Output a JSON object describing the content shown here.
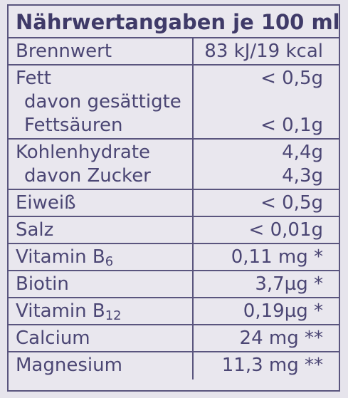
{
  "title": "Nährwertangaben je 100 ml",
  "rows": [
    {
      "lines": [
        {
          "label": "Brennwert",
          "value": "83 kJ/19 kcal"
        }
      ]
    },
    {
      "lines": [
        {
          "label": "Fett",
          "value": "< 0,5g"
        },
        {
          "label": "davon gesättigte"
        },
        {
          "label": "Fettsäuren",
          "value": "< 0,1g"
        }
      ]
    },
    {
      "lines": [
        {
          "label": "Kohlenhydrate",
          "value": "4,4g"
        },
        {
          "label": "davon Zucker",
          "value": "4,3g"
        }
      ]
    },
    {
      "lines": [
        {
          "label": "Eiweiß",
          "value": "< 0,5g"
        }
      ]
    },
    {
      "lines": [
        {
          "label": "Salz",
          "value": "< 0,01g"
        }
      ]
    },
    {
      "lines": [
        {
          "label": "Vitamin B",
          "sub": "6",
          "value": "0,11 mg *"
        }
      ]
    },
    {
      "lines": [
        {
          "label": "Biotin",
          "value": "3,7µg *"
        }
      ]
    },
    {
      "lines": [
        {
          "label": "Vitamin B",
          "sub": "12",
          "value": "0,19µg *"
        }
      ]
    },
    {
      "lines": [
        {
          "label": "Calcium",
          "value": "24 mg **"
        }
      ]
    },
    {
      "lines": [
        {
          "label": "Magnesium",
          "value": "11,3 mg **"
        }
      ]
    }
  ]
}
